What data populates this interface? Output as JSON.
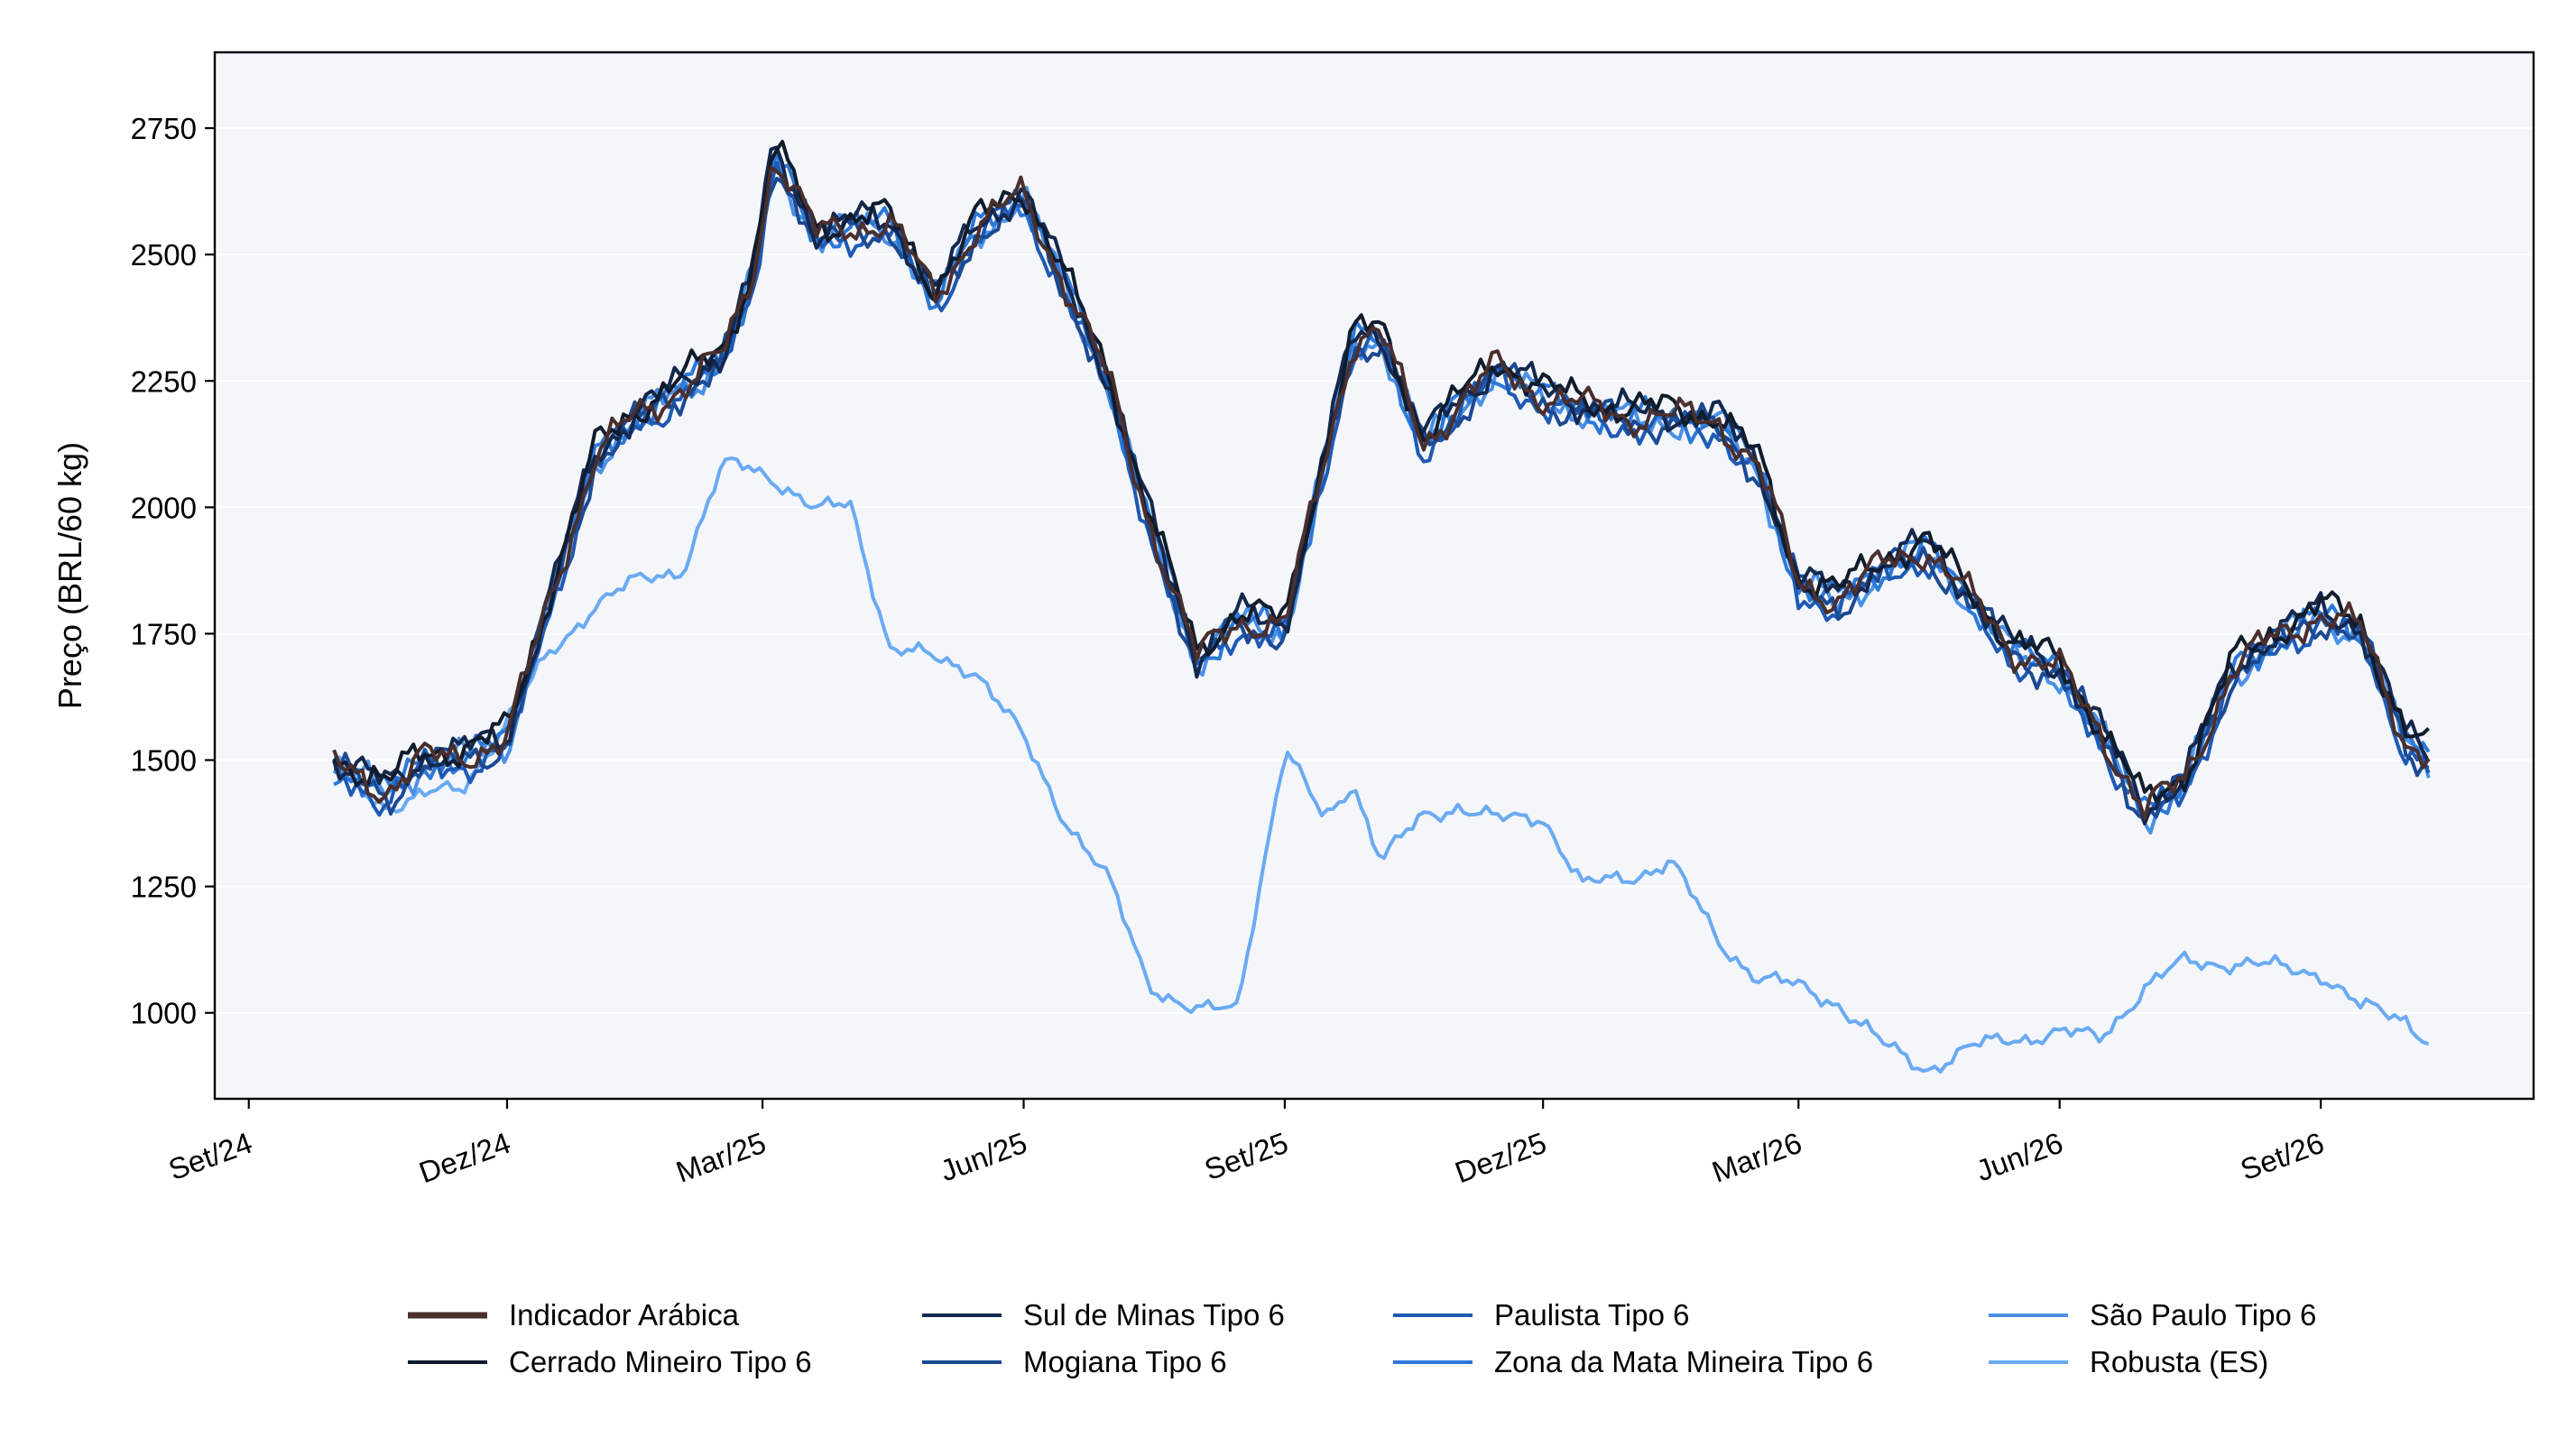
{
  "chart_data": {
    "type": "line",
    "ylabel": "Preço (BRL/60 kg)",
    "xlabel": "",
    "ylim": [
      830,
      2900
    ],
    "xlim": [
      "2024-08-20",
      "2026-11-15"
    ],
    "x_ticks": [
      {
        "date": "2024-09-01",
        "label": "Set/24"
      },
      {
        "date": "2024-12-01",
        "label": "Dez/24"
      },
      {
        "date": "2025-03-01",
        "label": "Mar/25"
      },
      {
        "date": "2025-06-01",
        "label": "Jun/25"
      },
      {
        "date": "2025-09-01",
        "label": "Set/25"
      },
      {
        "date": "2025-12-01",
        "label": "Dez/25"
      },
      {
        "date": "2026-03-01",
        "label": "Mar/26"
      },
      {
        "date": "2026-06-01",
        "label": "Jun/26"
      },
      {
        "date": "2026-09-01",
        "label": "Set/26"
      }
    ],
    "y_ticks": [
      1000,
      1250,
      1500,
      1750,
      2000,
      2250,
      2500,
      2750
    ],
    "grid": "horizontal",
    "legend_position": "bottom",
    "legend_columns": 4,
    "plot_background": "#f4f6fa",
    "x": [
      "2024-10-01",
      "2024-10-10",
      "2024-10-20",
      "2024-11-01",
      "2024-11-15",
      "2024-12-01",
      "2024-12-15",
      "2025-01-01",
      "2025-01-15",
      "2025-02-01",
      "2025-02-15",
      "2025-02-25",
      "2025-03-05",
      "2025-03-20",
      "2025-04-01",
      "2025-04-15",
      "2025-05-01",
      "2025-05-15",
      "2025-06-01",
      "2025-06-15",
      "2025-07-01",
      "2025-07-15",
      "2025-08-01",
      "2025-08-15",
      "2025-09-01",
      "2025-09-15",
      "2025-09-25",
      "2025-10-05",
      "2025-10-20",
      "2025-11-01",
      "2025-11-15",
      "2025-12-01",
      "2025-12-15",
      "2026-01-01",
      "2026-01-15",
      "2026-02-01",
      "2026-02-15",
      "2026-03-01",
      "2026-03-15",
      "2026-04-01",
      "2026-04-15",
      "2026-05-01",
      "2026-05-15",
      "2026-06-01",
      "2026-06-15",
      "2026-07-01",
      "2026-07-15",
      "2026-08-01",
      "2026-08-15",
      "2026-09-01",
      "2026-09-15",
      "2026-10-01",
      "2026-10-10"
    ],
    "arabica_base": [
      1490,
      1470,
      1440,
      1500,
      1510,
      1540,
      1800,
      2100,
      2180,
      2240,
      2300,
      2450,
      2700,
      2540,
      2560,
      2560,
      2420,
      2550,
      2620,
      2450,
      2250,
      1980,
      1700,
      1780,
      1760,
      2100,
      2330,
      2340,
      2130,
      2200,
      2280,
      2220,
      2200,
      2180,
      2180,
      2170,
      2080,
      1850,
      1820,
      1890,
      1920,
      1820,
      1720,
      1680,
      1560,
      1400,
      1460,
      1680,
      1740,
      1790,
      1760,
      1540,
      1500
    ],
    "robusta": [
      1510,
      1440,
      1410,
      1430,
      1440,
      1580,
      1700,
      1810,
      1850,
      1880,
      2080,
      2080,
      2060,
      1990,
      2010,
      1720,
      1700,
      1680,
      1540,
      1390,
      1260,
      1060,
      1000,
      1010,
      1520,
      1380,
      1460,
      1300,
      1390,
      1410,
      1380,
      1390,
      1250,
      1270,
      1300,
      1140,
      1070,
      1050,
      1020,
      930,
      890,
      930,
      950,
      960,
      950,
      1050,
      1100,
      1100,
      1090,
      1080,
      1010,
      990,
      940
    ],
    "series": [
      {
        "name": "Indicador Arábica",
        "color": "#4a2f2c",
        "offset": 0,
        "noise": 1
      },
      {
        "name": "Cerrado Mineiro Tipo 6",
        "color": "#101c2c",
        "offset": 15,
        "noise": 2
      },
      {
        "name": "Sul de Minas Tipo 6",
        "color": "#14284e",
        "offset": 8,
        "noise": 3
      },
      {
        "name": "Mogiana Tipo 6",
        "color": "#1c4a92",
        "offset": -12,
        "noise": 4
      },
      {
        "name": "Paulista Tipo 6",
        "color": "#1e5ab4",
        "offset": -20,
        "noise": 5
      },
      {
        "name": "Zona da Mata Mineira Tipo 6",
        "color": "#2c78d8",
        "offset": -5,
        "noise": 6
      },
      {
        "name": "São Paulo Tipo 6",
        "color": "#4a90e6",
        "offset": -8,
        "noise": 7
      },
      {
        "name": "Robusta (ES)",
        "color": "#6aaaf2",
        "robusta": true,
        "noise": 8
      }
    ]
  }
}
